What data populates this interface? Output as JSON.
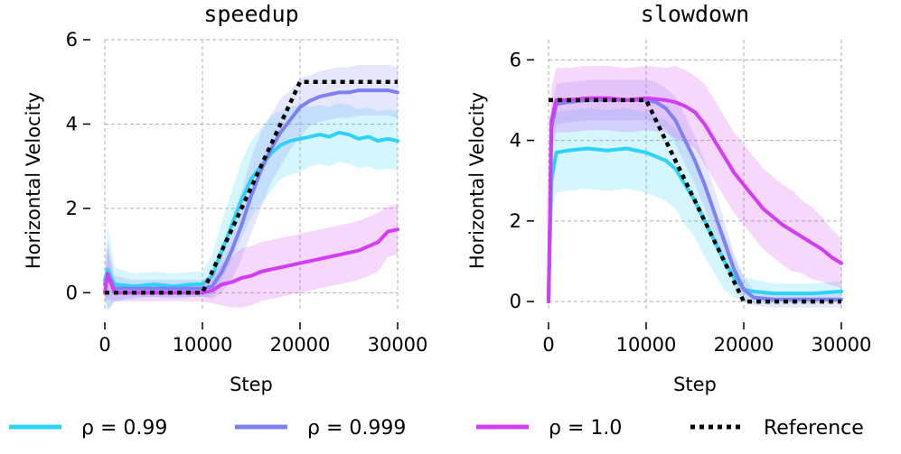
{
  "chart_data": [
    {
      "type": "line",
      "title": "speedup",
      "xlabel": "Step",
      "ylabel": "Horizontal Velocity",
      "xlim": [
        0,
        30000
      ],
      "ylim": [
        -0.4,
        6
      ],
      "xticks": [
        0,
        10000,
        20000,
        30000
      ],
      "xtick_labels": [
        "0",
        "10000",
        "20000",
        "30000"
      ],
      "yticks": [
        0,
        2,
        4,
        6
      ],
      "ytick_labels": [
        "0",
        "2",
        "4",
        "6"
      ],
      "grid": true,
      "series": [
        {
          "name": "ρ = 0.99",
          "color": "#2ed3f7",
          "x": [
            0,
            300,
            1000,
            3000,
            5000,
            7000,
            9000,
            10000,
            11000,
            12000,
            13000,
            14000,
            15000,
            16000,
            17000,
            18000,
            19000,
            20000,
            21000,
            22000,
            23000,
            24000,
            25000,
            26000,
            27000,
            28000,
            29000,
            30000
          ],
          "y": [
            0.3,
            0.55,
            0.2,
            0.15,
            0.2,
            0.15,
            0.2,
            0.2,
            0.4,
            1.0,
            1.6,
            2.2,
            2.7,
            3.0,
            3.3,
            3.5,
            3.6,
            3.65,
            3.7,
            3.75,
            3.7,
            3.8,
            3.75,
            3.65,
            3.7,
            3.6,
            3.65,
            3.6
          ],
          "band": [
            0.4,
            1.0,
            0.4,
            0.3,
            0.3,
            0.3,
            0.3,
            0.3,
            0.5,
            0.7,
            0.8,
            0.9,
            0.9,
            0.9,
            0.9,
            0.8,
            0.8,
            0.8,
            0.7,
            0.7,
            0.7,
            0.7,
            0.7,
            0.7,
            0.7,
            0.7,
            0.7,
            0.7
          ]
        },
        {
          "name": "ρ = 0.999",
          "color": "#8080f5",
          "x": [
            0,
            300,
            1000,
            3000,
            5000,
            7000,
            9000,
            10000,
            11000,
            12000,
            13000,
            14000,
            15000,
            16000,
            17000,
            18000,
            19000,
            20000,
            21000,
            22000,
            23000,
            24000,
            25000,
            26000,
            27000,
            28000,
            29000,
            30000
          ],
          "y": [
            0.2,
            0.4,
            0.1,
            0.1,
            0.1,
            0.1,
            0.1,
            0.1,
            0.15,
            0.5,
            1.0,
            1.6,
            2.3,
            2.9,
            3.4,
            3.8,
            4.1,
            4.4,
            4.55,
            4.65,
            4.7,
            4.75,
            4.75,
            4.8,
            4.8,
            4.8,
            4.8,
            4.75
          ],
          "band": [
            0.3,
            0.8,
            0.3,
            0.2,
            0.2,
            0.2,
            0.2,
            0.2,
            0.3,
            0.5,
            0.7,
            0.8,
            0.9,
            0.9,
            0.8,
            0.8,
            0.7,
            0.7,
            0.6,
            0.6,
            0.6,
            0.6,
            0.6,
            0.6,
            0.6,
            0.6,
            0.6,
            0.6
          ]
        },
        {
          "name": "ρ = 1.0",
          "color": "#d23cf5",
          "x": [
            0,
            300,
            1000,
            3000,
            5000,
            7000,
            9000,
            10000,
            11000,
            12000,
            13000,
            14000,
            15000,
            16000,
            17000,
            18000,
            19000,
            20000,
            21000,
            22000,
            23000,
            24000,
            25000,
            26000,
            27000,
            28000,
            29000,
            30000
          ],
          "y": [
            0.0,
            0.45,
            0.0,
            0.0,
            0.0,
            0.0,
            0.0,
            0.0,
            0.05,
            0.2,
            0.25,
            0.35,
            0.4,
            0.5,
            0.55,
            0.6,
            0.65,
            0.7,
            0.75,
            0.8,
            0.85,
            0.9,
            0.95,
            1.0,
            1.1,
            1.2,
            1.45,
            1.5
          ],
          "band": [
            0.2,
            0.6,
            0.2,
            0.2,
            0.2,
            0.2,
            0.2,
            0.2,
            0.3,
            0.5,
            0.6,
            0.7,
            0.7,
            0.7,
            0.7,
            0.7,
            0.7,
            0.7,
            0.7,
            0.7,
            0.7,
            0.7,
            0.7,
            0.7,
            0.7,
            0.7,
            0.6,
            0.6
          ]
        },
        {
          "name": "Reference",
          "color": "#000000",
          "dotted": true,
          "x": [
            0,
            10000,
            20000,
            30000
          ],
          "y": [
            0,
            0,
            5,
            5
          ]
        }
      ]
    },
    {
      "type": "line",
      "title": "slowdown",
      "xlabel": "Step",
      "ylabel": "Horizontal Velocity",
      "xlim": [
        0,
        30000
      ],
      "ylim": [
        -0.2,
        6.5
      ],
      "xticks": [
        0,
        10000,
        20000,
        30000
      ],
      "xtick_labels": [
        "0",
        "10000",
        "20000",
        "30000"
      ],
      "yticks": [
        0,
        2,
        4,
        6
      ],
      "ytick_labels": [
        "0",
        "2",
        "4",
        "6"
      ],
      "grid": true,
      "series": [
        {
          "name": "ρ = 0.99",
          "color": "#2ed3f7",
          "x": [
            0,
            300,
            800,
            2000,
            4000,
            6000,
            8000,
            10000,
            11000,
            12000,
            13000,
            14000,
            15000,
            16000,
            17000,
            18000,
            19000,
            20000,
            21000,
            23000,
            25000,
            27000,
            30000
          ],
          "y": [
            0,
            3.0,
            3.7,
            3.75,
            3.8,
            3.75,
            3.8,
            3.7,
            3.6,
            3.5,
            3.3,
            2.9,
            2.5,
            2.0,
            1.5,
            1.0,
            0.6,
            0.3,
            0.25,
            0.2,
            0.2,
            0.2,
            0.25
          ],
          "band": [
            0.2,
            0.8,
            1.0,
            1.0,
            1.0,
            1.0,
            1.0,
            1.0,
            1.0,
            1.0,
            1.0,
            1.0,
            0.9,
            0.9,
            0.8,
            0.7,
            0.5,
            0.3,
            0.3,
            0.25,
            0.25,
            0.25,
            0.25
          ]
        },
        {
          "name": "ρ = 0.999",
          "color": "#8080f5",
          "x": [
            0,
            300,
            800,
            2000,
            4000,
            6000,
            8000,
            10000,
            11000,
            12000,
            13000,
            14000,
            15000,
            16000,
            17000,
            18000,
            19000,
            20000,
            21000,
            23000,
            25000,
            27000,
            30000
          ],
          "y": [
            0,
            4.3,
            4.9,
            4.95,
            5.0,
            5.0,
            5.0,
            5.0,
            4.95,
            4.8,
            4.5,
            4.0,
            3.5,
            2.9,
            2.2,
            1.5,
            0.8,
            0.3,
            0.1,
            0.05,
            0.05,
            0.05,
            0.05
          ],
          "band": [
            0.2,
            0.5,
            0.5,
            0.5,
            0.5,
            0.5,
            0.5,
            0.5,
            0.5,
            0.5,
            0.6,
            0.6,
            0.6,
            0.6,
            0.6,
            0.5,
            0.4,
            0.3,
            0.2,
            0.2,
            0.2,
            0.2,
            0.2
          ]
        },
        {
          "name": "ρ = 1.0",
          "color": "#d23cf5",
          "x": [
            0,
            300,
            800,
            2000,
            4000,
            6000,
            8000,
            10000,
            12000,
            13000,
            14000,
            15000,
            16000,
            17000,
            18000,
            19000,
            20000,
            21000,
            22000,
            23000,
            24000,
            25000,
            26000,
            27000,
            28000,
            29000,
            30000
          ],
          "y": [
            0,
            4.5,
            5.0,
            5.0,
            5.05,
            5.05,
            5.0,
            5.05,
            5.0,
            4.95,
            4.85,
            4.7,
            4.4,
            4.0,
            3.6,
            3.2,
            2.9,
            2.6,
            2.3,
            2.1,
            1.9,
            1.75,
            1.6,
            1.45,
            1.3,
            1.1,
            0.95
          ],
          "band": [
            0.2,
            0.8,
            0.8,
            0.8,
            0.8,
            0.8,
            0.8,
            0.8,
            0.8,
            0.9,
            0.9,
            0.9,
            1.0,
            1.0,
            1.0,
            1.0,
            1.0,
            1.0,
            1.0,
            1.0,
            1.0,
            1.0,
            0.9,
            0.9,
            0.8,
            0.7,
            0.6
          ]
        },
        {
          "name": "Reference",
          "color": "#000000",
          "dotted": true,
          "x": [
            0,
            10000,
            20000,
            30000
          ],
          "y": [
            5,
            5,
            0,
            0
          ]
        }
      ]
    }
  ],
  "legend": {
    "placement": "bottom",
    "items": [
      {
        "label": "ρ = 0.99",
        "color": "#2ed3f7",
        "style": "solid"
      },
      {
        "label": "ρ = 0.999",
        "color": "#8080f5",
        "style": "solid"
      },
      {
        "label": "ρ = 1.0",
        "color": "#d23cf5",
        "style": "solid"
      },
      {
        "label": "Reference",
        "color": "#000000",
        "style": "dotted"
      }
    ]
  }
}
